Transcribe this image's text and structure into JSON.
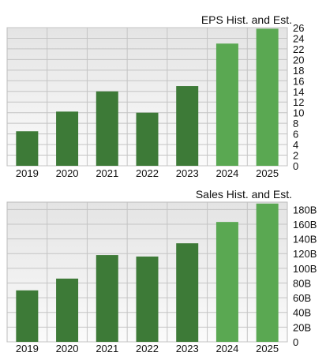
{
  "chart_data": [
    {
      "type": "bar",
      "title": "EPS Hist. and Est.",
      "categories": [
        "2019",
        "2020",
        "2021",
        "2022",
        "2023",
        "2024",
        "2025"
      ],
      "values": [
        6.5,
        10.2,
        14.0,
        10.0,
        15.0,
        23.0,
        25.8
      ],
      "estimate_flags": [
        false,
        false,
        false,
        false,
        false,
        true,
        true
      ],
      "ylim": [
        0,
        26
      ],
      "yticks": [
        0,
        2,
        4,
        6,
        8,
        10,
        12,
        14,
        16,
        18,
        20,
        22,
        24,
        26
      ],
      "ytick_labels": [
        "0",
        "2",
        "4",
        "6",
        "8",
        "10",
        "12",
        "14",
        "16",
        "18",
        "20",
        "22",
        "24",
        "26"
      ],
      "xlabel": "",
      "ylabel": "",
      "grid": true,
      "y_axis_side": "right"
    },
    {
      "type": "bar",
      "title": "Sales Hist. and Est.",
      "categories": [
        "2019",
        "2020",
        "2021",
        "2022",
        "2023",
        "2024",
        "2025"
      ],
      "values": [
        70,
        86,
        118,
        116,
        134,
        163,
        188
      ],
      "value_unit": "B",
      "estimate_flags": [
        false,
        false,
        false,
        false,
        false,
        true,
        true
      ],
      "ylim": [
        0,
        190
      ],
      "yticks": [
        0,
        20,
        40,
        60,
        80,
        100,
        120,
        140,
        160,
        180
      ],
      "ytick_labels": [
        "0",
        "20B",
        "40B",
        "60B",
        "80B",
        "100B",
        "120B",
        "140B",
        "160B",
        "180B"
      ],
      "xlabel": "",
      "ylabel": "",
      "grid": true,
      "y_axis_side": "right"
    }
  ],
  "colors": {
    "historical_bar": "#3d7a37",
    "estimate_bar": "#5aa852",
    "plot_background_top": "#e4e4e4",
    "plot_background_bottom": "#fbfbfb",
    "grid": "#c4c4c4"
  }
}
